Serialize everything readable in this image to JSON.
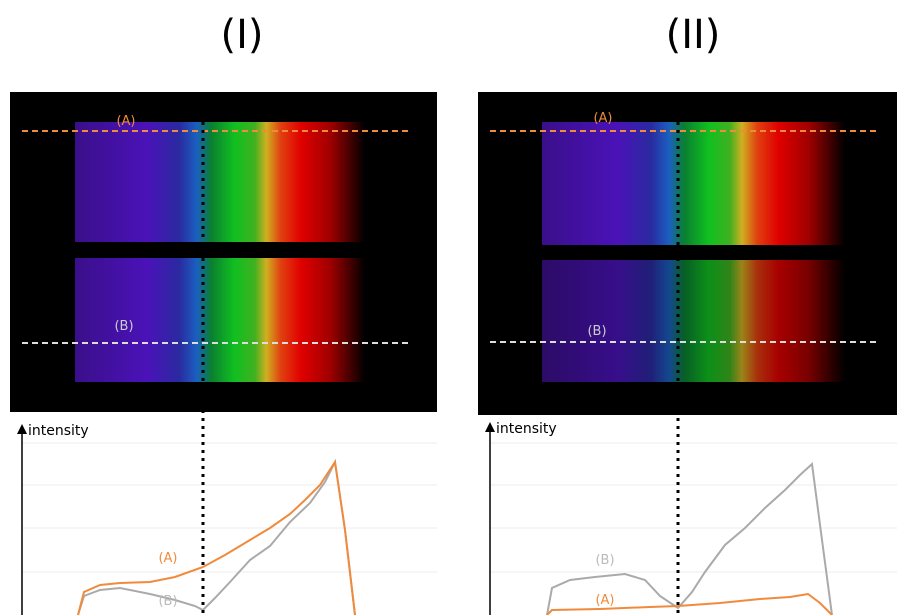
{
  "panels": [
    {
      "title": "(I)",
      "image_label_a": "(A)",
      "image_label_b": "(B)",
      "y_axis_label": "intensity",
      "plot_label_a": "(A)",
      "plot_label_b": "(B)"
    },
    {
      "title": "(II)",
      "image_label_a": "(A)",
      "image_label_b": "(B)",
      "y_axis_label": "intensity",
      "plot_label_a": "(A)",
      "plot_label_b": "(B)"
    }
  ]
}
